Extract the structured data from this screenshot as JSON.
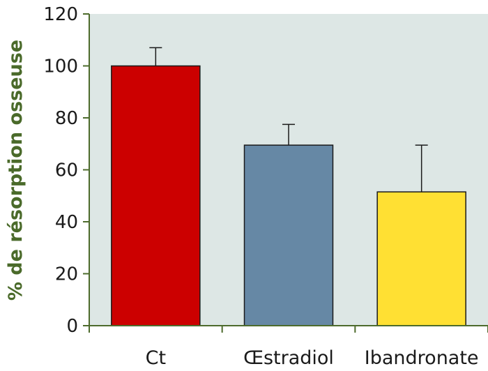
{
  "chart_data": {
    "type": "bar",
    "title": "",
    "xlabel": "",
    "ylabel": "% de résorption osseuse",
    "categories": [
      "Ct",
      "Œstradiol",
      "Ibandronate"
    ],
    "values": [
      100,
      69.5,
      51.5
    ],
    "error_upper": [
      107,
      77.5,
      69.5
    ],
    "ylim": [
      0,
      120
    ],
    "yticks": [
      "0",
      "20",
      "40",
      "60",
      "80",
      "100",
      "120"
    ],
    "grid": false,
    "bar_colors": [
      "#cc0000",
      "#6688a5",
      "#ffe033"
    ],
    "plot_background": "#dde7e5",
    "axis_color": "#4d6b2c"
  }
}
